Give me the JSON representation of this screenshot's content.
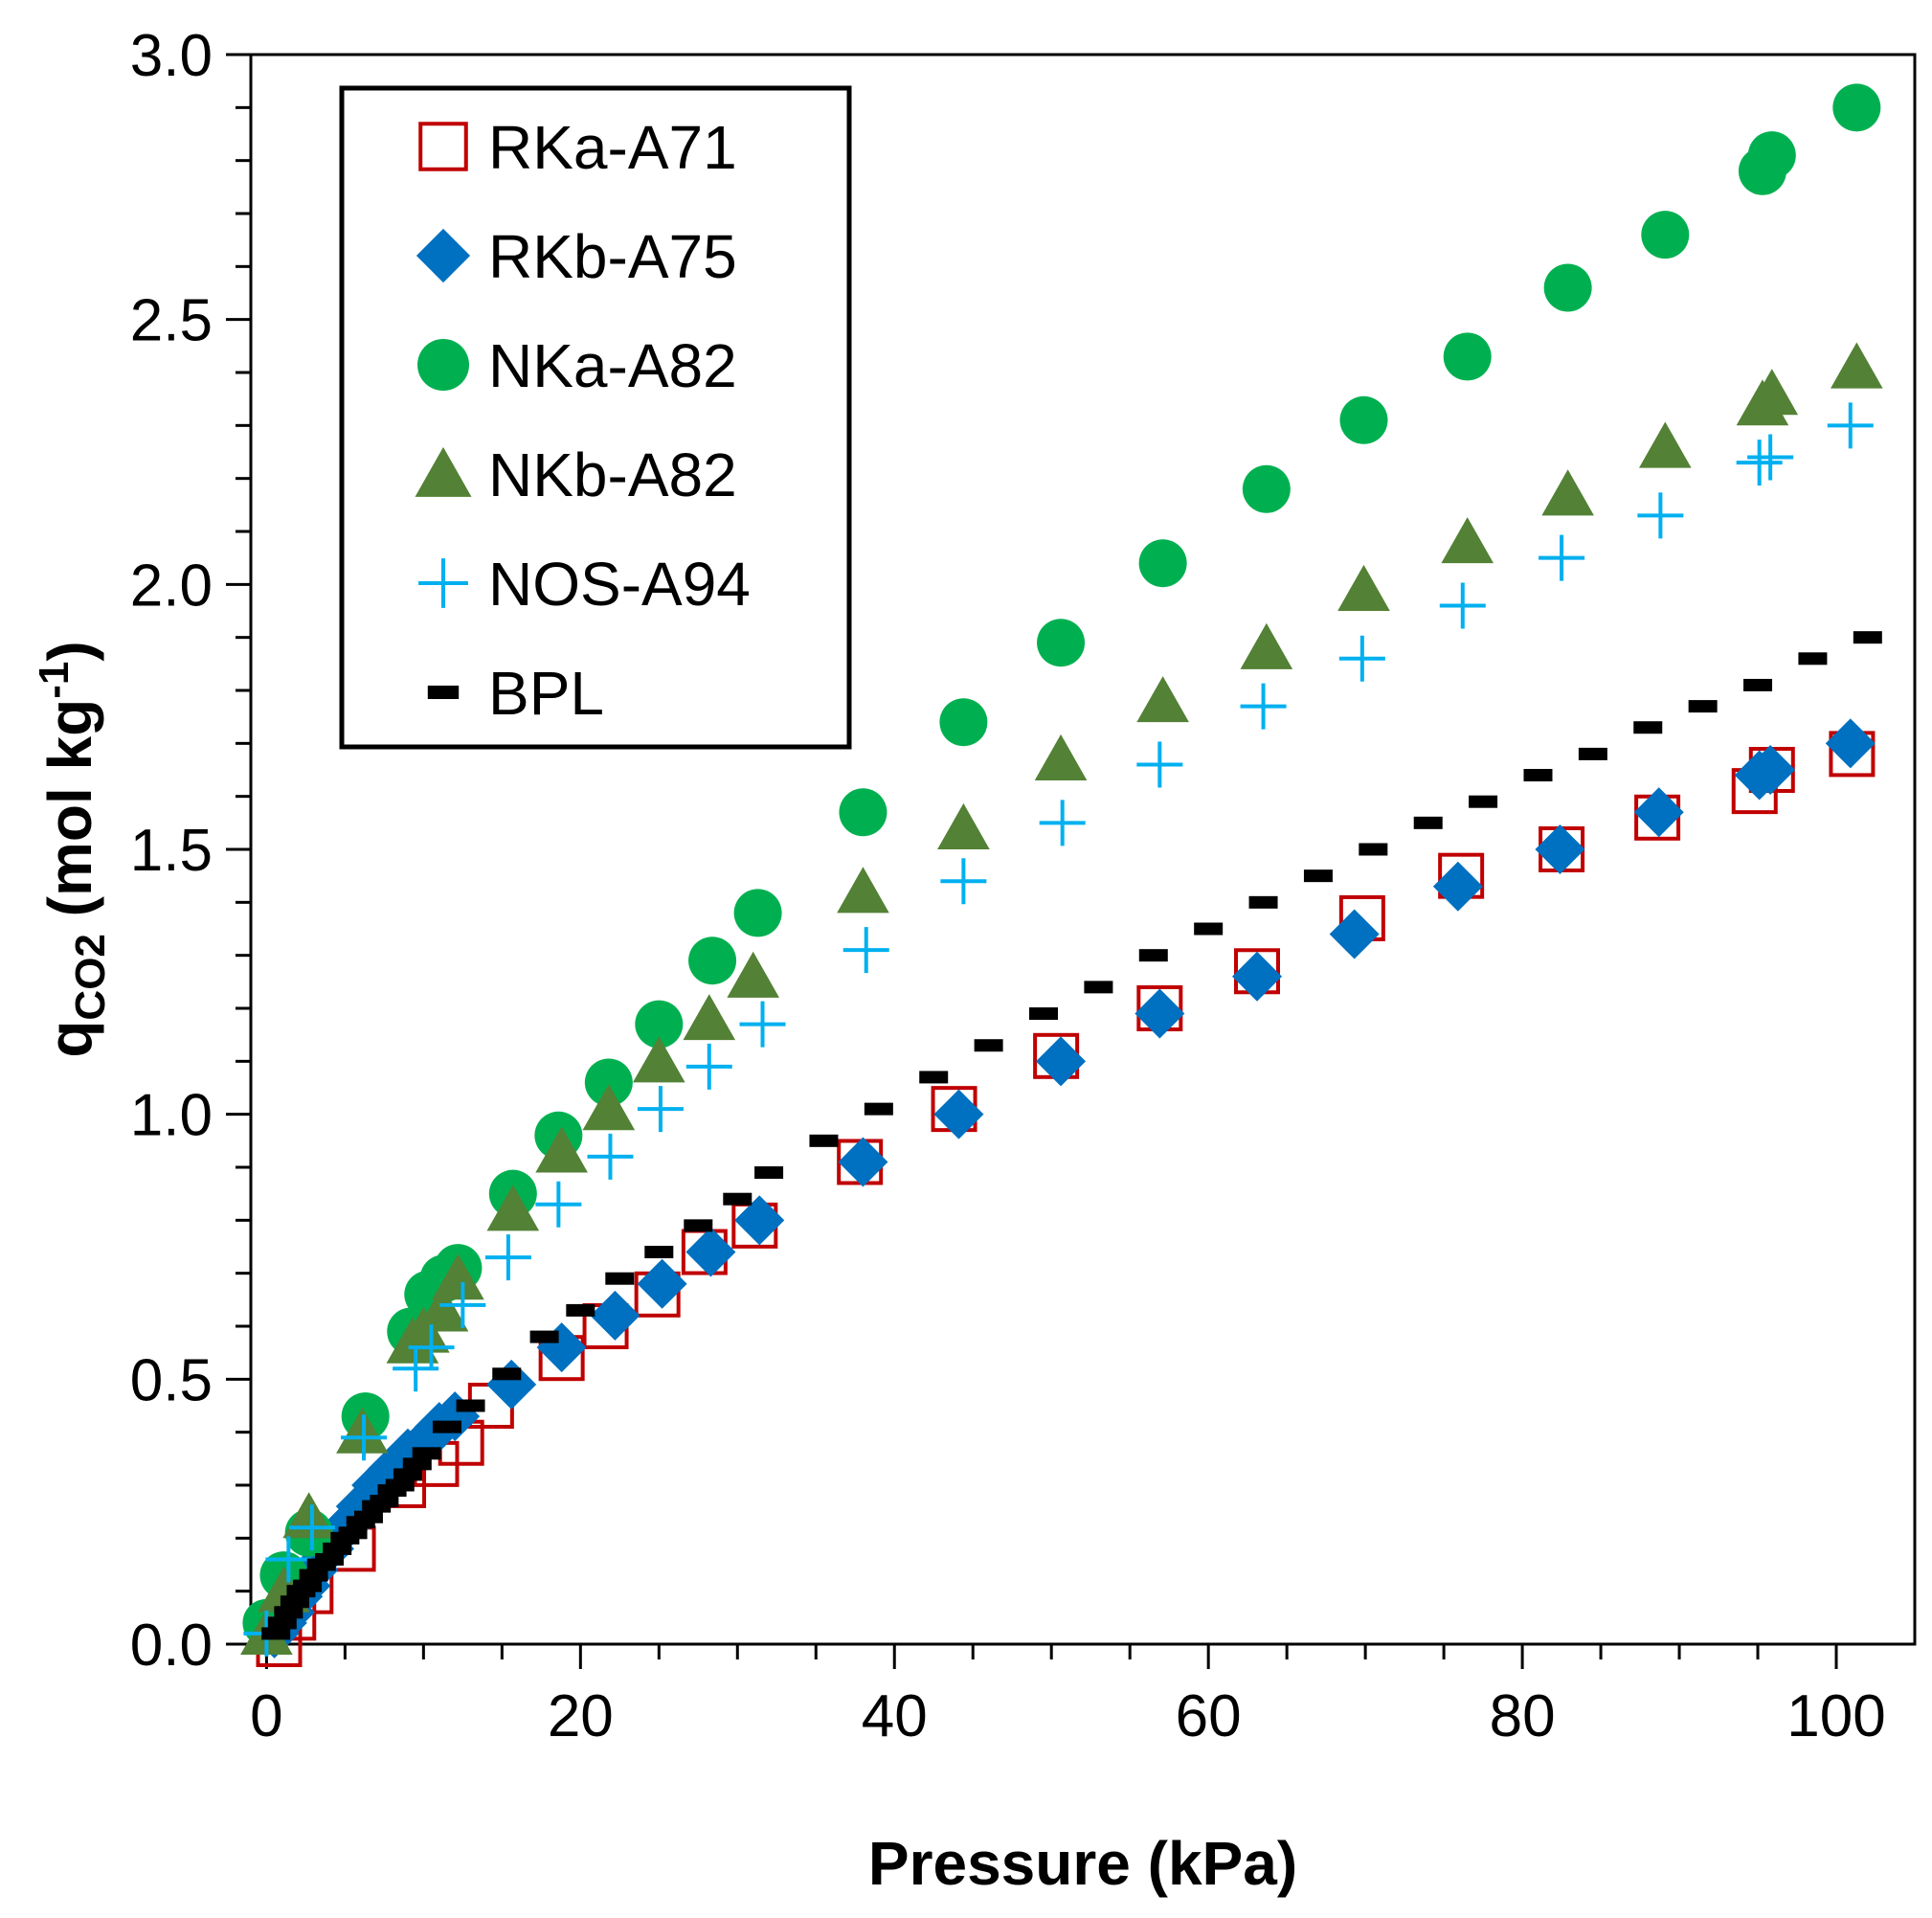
{
  "chart_data": {
    "type": "scatter",
    "title": "",
    "xlabel": "Pressure (kPa)",
    "ylabel": {
      "main": "q",
      "sub": "CO2",
      "unit_prefix": " (mol kg",
      "unit_exp": "-1",
      "unit_suffix": ")"
    },
    "xlim": [
      -1,
      105
    ],
    "ylim": [
      0,
      3
    ],
    "x_major_ticks": [
      0,
      20,
      40,
      60,
      80,
      100
    ],
    "x_major_labels": [
      "0",
      "20",
      "40",
      "60",
      "80",
      "100"
    ],
    "x_minor_step": 5,
    "y_major_ticks": [
      0,
      0.5,
      1,
      1.5,
      2,
      2.5,
      3
    ],
    "y_major_labels": [
      "0.0",
      "0.5",
      "1.0",
      "1.5",
      "2.0",
      "2.5",
      "3.0"
    ],
    "y_minor_step": 0.1,
    "grid": false,
    "legend": "top-left",
    "series": [
      {
        "name": "RKa-A71",
        "marker": "square-open",
        "color": "#c00000",
        "x": [
          0.8,
          1.7,
          2.8,
          5.5,
          8.7,
          10.8,
          12.4,
          14.3,
          18.8,
          21.6,
          24.9,
          27.9,
          31.1,
          37.8,
          43.8,
          50.3,
          56.9,
          63.1,
          69.8,
          76.1,
          82.5,
          88.6,
          94.8,
          95.9,
          101.0
        ],
        "y": [
          0.0,
          0.05,
          0.1,
          0.18,
          0.3,
          0.34,
          0.38,
          0.45,
          0.54,
          0.6,
          0.66,
          0.74,
          0.79,
          0.91,
          1.01,
          1.11,
          1.2,
          1.27,
          1.37,
          1.45,
          1.5,
          1.56,
          1.61,
          1.65,
          1.68
        ]
      },
      {
        "name": "RKb-A75",
        "marker": "diamond",
        "color": "#0070c0",
        "x": [
          0.5,
          1.0,
          1.5,
          2.0,
          2.5,
          3.0,
          4.0,
          5.0,
          6.0,
          7.0,
          8.0,
          9.0,
          10.0,
          11.0,
          12.0,
          15.6,
          18.8,
          22.2,
          25.2,
          28.3,
          31.4,
          38.0,
          44.1,
          50.6,
          56.9,
          63.1,
          69.3,
          75.9,
          82.4,
          88.7,
          95.1,
          95.8,
          100.9
        ],
        "y": [
          0.02,
          0.04,
          0.06,
          0.09,
          0.11,
          0.14,
          0.18,
          0.22,
          0.26,
          0.3,
          0.33,
          0.36,
          0.38,
          0.41,
          0.43,
          0.49,
          0.56,
          0.62,
          0.68,
          0.74,
          0.8,
          0.91,
          1.0,
          1.1,
          1.19,
          1.26,
          1.34,
          1.43,
          1.5,
          1.57,
          1.64,
          1.65,
          1.7
        ]
      },
      {
        "name": "NKa-A82",
        "marker": "circle",
        "color": "#00b050",
        "x": [
          0.0,
          1.1,
          2.7,
          6.3,
          9.2,
          10.3,
          11.3,
          12.2,
          15.7,
          18.6,
          21.8,
          25.0,
          28.4,
          31.3,
          38.0,
          44.4,
          50.6,
          57.1,
          63.7,
          69.9,
          76.5,
          82.9,
          89.1,
          95.3,
          95.9,
          101.3
        ],
        "y": [
          0.04,
          0.13,
          0.21,
          0.43,
          0.59,
          0.66,
          0.69,
          0.71,
          0.85,
          0.96,
          1.06,
          1.17,
          1.29,
          1.38,
          1.57,
          1.74,
          1.89,
          2.04,
          2.18,
          2.31,
          2.43,
          2.56,
          2.66,
          2.78,
          2.81,
          2.9
        ]
      },
      {
        "name": "NKb-A82",
        "marker": "triangle",
        "color": "#538135",
        "x": [
          0.0,
          1.1,
          2.7,
          6.1,
          9.3,
          10.0,
          11.2,
          12.2,
          15.7,
          18.8,
          21.8,
          25.0,
          28.2,
          31.0,
          38.0,
          44.4,
          50.6,
          57.1,
          63.7,
          69.9,
          76.5,
          82.9,
          89.1,
          95.3,
          95.9,
          101.3
        ],
        "y": [
          0.02,
          0.1,
          0.24,
          0.4,
          0.57,
          0.59,
          0.63,
          0.69,
          0.82,
          0.93,
          1.01,
          1.1,
          1.18,
          1.26,
          1.42,
          1.54,
          1.67,
          1.78,
          1.88,
          1.99,
          2.08,
          2.17,
          2.26,
          2.34,
          2.36,
          2.41
        ]
      },
      {
        "name": "NOS-A94",
        "marker": "plus",
        "color": "#00b0f0",
        "x": [
          0.0,
          1.4,
          2.9,
          6.2,
          9.5,
          10.5,
          12.5,
          15.4,
          18.6,
          21.9,
          25.1,
          28.2,
          31.6,
          38.2,
          44.4,
          50.7,
          56.9,
          63.5,
          69.8,
          76.2,
          82.5,
          88.8,
          95.1,
          95.8,
          100.9
        ],
        "y": [
          0.02,
          0.16,
          0.22,
          0.39,
          0.52,
          0.56,
          0.64,
          0.73,
          0.83,
          0.92,
          1.01,
          1.09,
          1.17,
          1.31,
          1.44,
          1.55,
          1.66,
          1.77,
          1.86,
          1.96,
          2.05,
          2.13,
          2.23,
          2.24,
          2.3
        ]
      },
      {
        "name": "BPL",
        "marker": "dash",
        "color": "#000000",
        "x": [
          0.6,
          1.0,
          1.4,
          1.8,
          2.2,
          2.6,
          3.0,
          3.5,
          4.0,
          4.5,
          5.0,
          5.5,
          6.0,
          6.5,
          7.0,
          7.5,
          8.0,
          8.5,
          9.0,
          9.6,
          10.2,
          11.5,
          13.0,
          15.3,
          17.7,
          20.0,
          22.5,
          25.0,
          27.5,
          30.0,
          32.0,
          35.5,
          39.0,
          42.5,
          46.0,
          49.5,
          53.0,
          56.5,
          60.0,
          63.5,
          67.0,
          70.5,
          74.0,
          77.5,
          81.0,
          84.5,
          88.0,
          91.5,
          95.0,
          98.5,
          102.0
        ],
        "y": [
          0.02,
          0.04,
          0.06,
          0.08,
          0.1,
          0.11,
          0.13,
          0.15,
          0.16,
          0.18,
          0.2,
          0.21,
          0.23,
          0.24,
          0.26,
          0.27,
          0.29,
          0.3,
          0.32,
          0.34,
          0.36,
          0.41,
          0.45,
          0.51,
          0.58,
          0.63,
          0.69,
          0.74,
          0.79,
          0.84,
          0.89,
          0.95,
          1.01,
          1.07,
          1.13,
          1.19,
          1.24,
          1.3,
          1.35,
          1.4,
          1.45,
          1.5,
          1.55,
          1.59,
          1.64,
          1.68,
          1.73,
          1.77,
          1.81,
          1.86,
          1.9
        ]
      }
    ]
  }
}
